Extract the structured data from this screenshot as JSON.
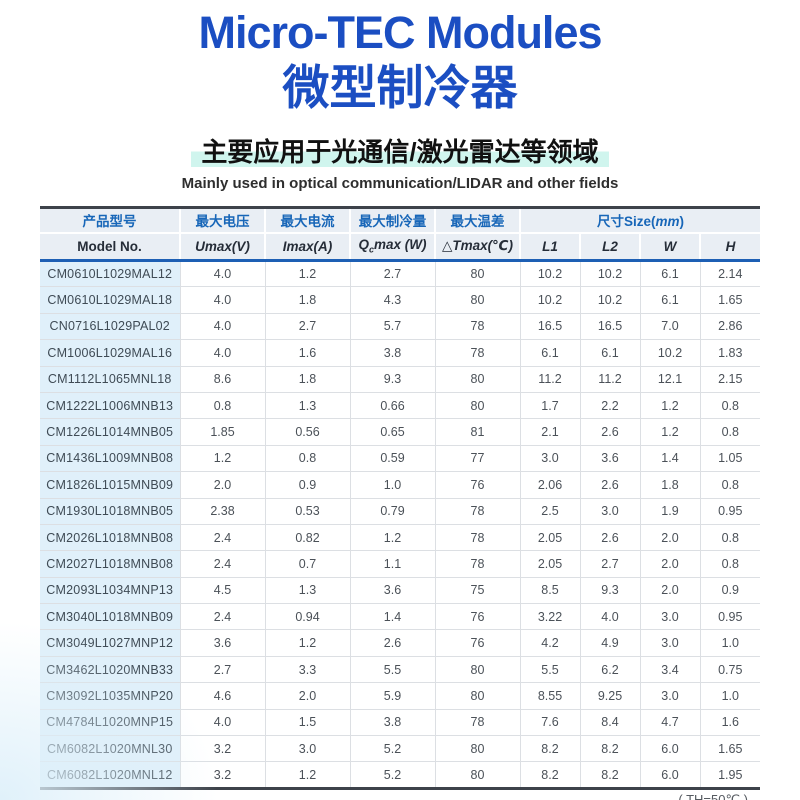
{
  "page": {
    "title_en": "Micro-TEC Modules",
    "title_zh": "微型制冷器",
    "subtitle_zh": "主要应用于光通信/激光雷达等领域",
    "subtitle_en": "Mainly used in optical communication/LIDAR and other fields",
    "footnote": "( TH=50℃ )"
  },
  "colors": {
    "title_blue": "#1b4ec2",
    "header_text_blue": "#1766b8",
    "highlight_cyan": "#d0f5ee",
    "header_bg": "#e9eef4",
    "model_column_bg": "#e0f0fa",
    "header_rule_blue": "#1d5fb4",
    "table_frame_dark": "#3d424a"
  },
  "table": {
    "header_row1": {
      "model": "产品型号",
      "umax": "最大电压",
      "imax": "最大电流",
      "qcmax": "最大制冷量",
      "tmax": "最大温差",
      "size_pre": "尺寸Size(",
      "size_italic": "mm",
      "size_post": ")"
    },
    "header_row2": {
      "model": "Model No.",
      "umax": "Umax(V)",
      "imax": "Imax(A)",
      "qc_pre": "Q",
      "qc_sub": "c",
      "qc_post": "max (W)",
      "tmax": "△Tmax(℃)",
      "l1": "L1",
      "l2": "L2",
      "w": "W",
      "h": "H"
    },
    "rows": [
      [
        "CM0610L1029MAL12",
        "4.0",
        "1.2",
        "2.7",
        "80",
        "10.2",
        "10.2",
        "6.1",
        "2.14"
      ],
      [
        "CM0610L1029MAL18",
        "4.0",
        "1.8",
        "4.3",
        "80",
        "10.2",
        "10.2",
        "6.1",
        "1.65"
      ],
      [
        "CN0716L1029PAL02",
        "4.0",
        "2.7",
        "5.7",
        "78",
        "16.5",
        "16.5",
        "7.0",
        "2.86"
      ],
      [
        "CM1006L1029MAL16",
        "4.0",
        "1.6",
        "3.8",
        "78",
        "6.1",
        "6.1",
        "10.2",
        "1.83"
      ],
      [
        "CM1112L1065MNL18",
        "8.6",
        "1.8",
        "9.3",
        "80",
        "11.2",
        "11.2",
        "12.1",
        "2.15"
      ],
      [
        "CM1222L1006MNB13",
        "0.8",
        "1.3",
        "0.66",
        "80",
        "1.7",
        "2.2",
        "1.2",
        "0.8"
      ],
      [
        "CM1226L1014MNB05",
        "1.85",
        "0.56",
        "0.65",
        "81",
        "2.1",
        "2.6",
        "1.2",
        "0.8"
      ],
      [
        "CM1436L1009MNB08",
        "1.2",
        "0.8",
        "0.59",
        "77",
        "3.0",
        "3.6",
        "1.4",
        "1.05"
      ],
      [
        "CM1826L1015MNB09",
        "2.0",
        "0.9",
        "1.0",
        "76",
        "2.06",
        "2.6",
        "1.8",
        "0.8"
      ],
      [
        "CM1930L1018MNB05",
        "2.38",
        "0.53",
        "0.79",
        "78",
        "2.5",
        "3.0",
        "1.9",
        "0.95"
      ],
      [
        "CM2026L1018MNB08",
        "2.4",
        "0.82",
        "1.2",
        "78",
        "2.05",
        "2.6",
        "2.0",
        "0.8"
      ],
      [
        "CM2027L1018MNB08",
        "2.4",
        "0.7",
        "1.1",
        "78",
        "2.05",
        "2.7",
        "2.0",
        "0.8"
      ],
      [
        "CM2093L1034MNP13",
        "4.5",
        "1.3",
        "3.6",
        "75",
        "8.5",
        "9.3",
        "2.0",
        "0.9"
      ],
      [
        "CM3040L1018MNB09",
        "2.4",
        "0.94",
        "1.4",
        "76",
        "3.22",
        "4.0",
        "3.0",
        "0.95"
      ],
      [
        "CM3049L1027MNP12",
        "3.6",
        "1.2",
        "2.6",
        "76",
        "4.2",
        "4.9",
        "3.0",
        "1.0"
      ],
      [
        "CM3462L1020MNB33",
        "2.7",
        "3.3",
        "5.5",
        "80",
        "5.5",
        "6.2",
        "3.4",
        "0.75"
      ],
      [
        "CM3092L1035MNP20",
        "4.6",
        "2.0",
        "5.9",
        "80",
        "8.55",
        "9.25",
        "3.0",
        "1.0"
      ],
      [
        "CM4784L1020MNP15",
        "4.0",
        "1.5",
        "3.8",
        "78",
        "7.6",
        "8.4",
        "4.7",
        "1.6"
      ],
      [
        "CM6082L1020MNL30",
        "3.2",
        "3.0",
        "5.2",
        "80",
        "8.2",
        "8.2",
        "6.0",
        "1.65"
      ],
      [
        "CM6082L1020MNL12",
        "3.2",
        "1.2",
        "5.2",
        "80",
        "8.2",
        "8.2",
        "6.0",
        "1.95"
      ]
    ]
  }
}
